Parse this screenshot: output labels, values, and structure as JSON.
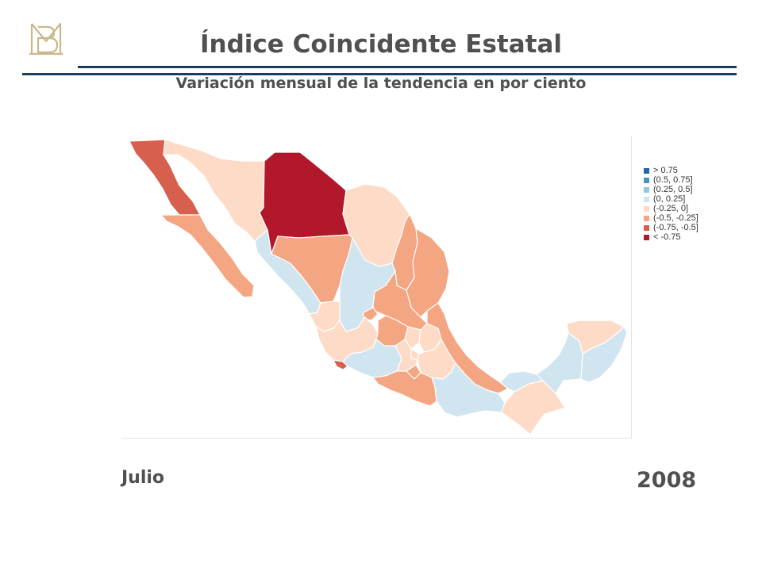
{
  "header": {
    "title": "Índice Coincidente Estatal",
    "subtitle": "Variación mensual de la tendencia en por ciento"
  },
  "logo": {
    "text": "BM",
    "color": "#c9b88a"
  },
  "legend": {
    "items": [
      {
        "label": "> 0.75",
        "color": "#2166ac"
      },
      {
        "label": "(0.5, 0.75]",
        "color": "#4393c3"
      },
      {
        "label": "(0.25, 0.5]",
        "color": "#92c5de"
      },
      {
        "label": "(0, 0.25]",
        "color": "#d1e5f0"
      },
      {
        "label": "(-0.25, 0]",
        "color": "#fddbc7"
      },
      {
        "label": "(-0.5, -0.25]",
        "color": "#f4a582"
      },
      {
        "label": "(-0.75, -0.5]",
        "color": "#d6604d"
      },
      {
        "label": "< -0.75",
        "color": "#b2182b"
      }
    ]
  },
  "footer": {
    "month": "Julio",
    "year": "2008"
  }
}
